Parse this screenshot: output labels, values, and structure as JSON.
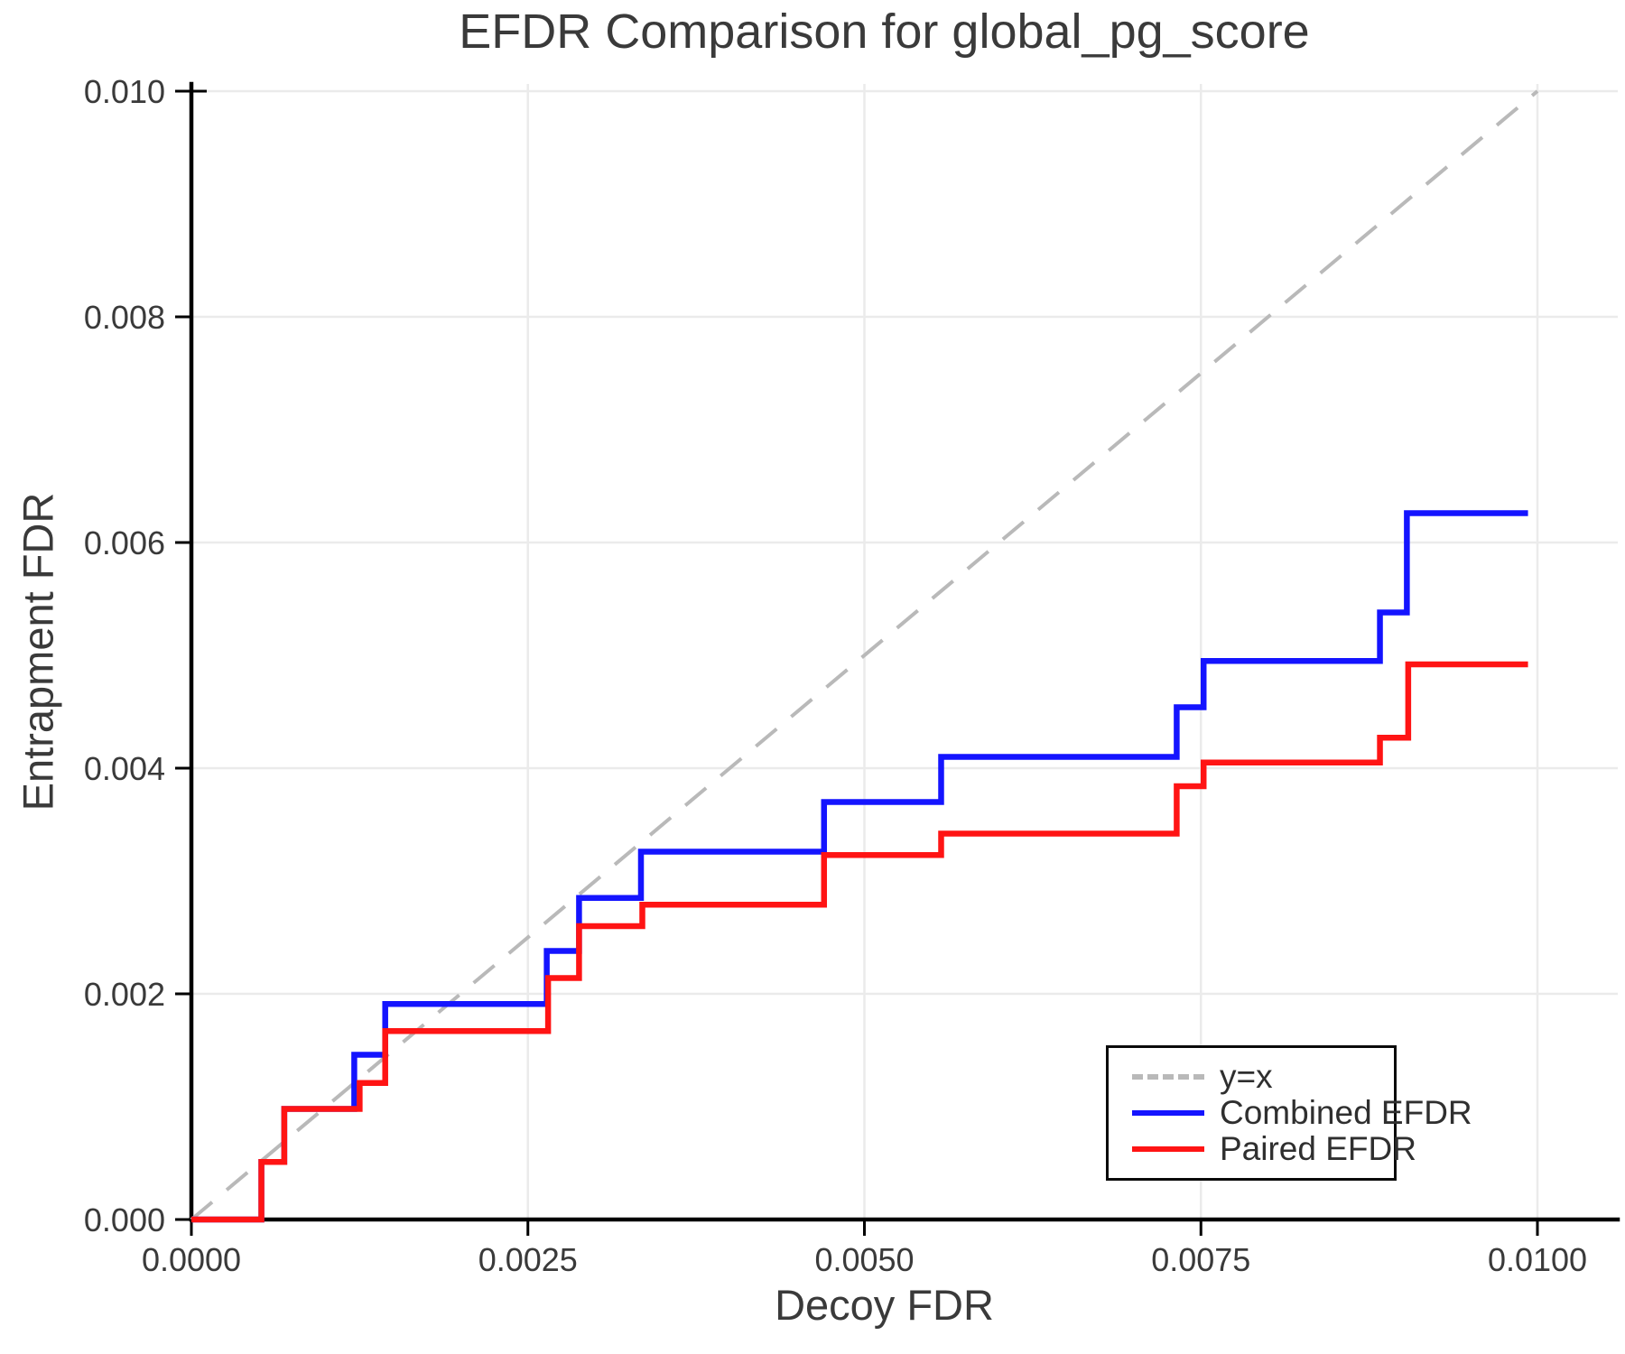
{
  "figure": {
    "title": "EFDR Comparison for global_pg_score",
    "xlabel": "Decoy FDR",
    "ylabel": "Entrapment FDR"
  },
  "legend": {
    "position": "lower right",
    "items": [
      {
        "label": "y=x",
        "color": "#b9b9b9",
        "line_style": "dashed"
      },
      {
        "label": "Combined EFDR",
        "color": "#1414ff",
        "line_style": "solid"
      },
      {
        "label": "Paired EFDR",
        "color": "#ff1414",
        "line_style": "solid"
      }
    ]
  },
  "chart_data": {
    "type": "line",
    "subtype": "step-post",
    "title": "EFDR Comparison for global_pg_score",
    "xlabel": "Decoy FDR",
    "ylabel": "Entrapment FDR",
    "xlim": [
      0,
      0.0106
    ],
    "ylim": [
      0,
      0.01006
    ],
    "grid": true,
    "x_ticks": [
      0,
      0.0025,
      0.005,
      0.0075,
      0.01
    ],
    "x_tick_labels": [
      "0.0000",
      "0.0025",
      "0.0050",
      "0.0075",
      "0.0100"
    ],
    "y_ticks": [
      0,
      0.002,
      0.004,
      0.006,
      0.008,
      0.01
    ],
    "y_tick_labels": [
      "0.000",
      "0.002",
      "0.004",
      "0.006",
      "0.008",
      "0.010"
    ],
    "reference_line": {
      "name": "y=x",
      "from": [
        0,
        0
      ],
      "to": [
        0.01,
        0.01
      ],
      "color": "#b9b9b9",
      "dashed": true
    },
    "series": [
      {
        "name": "Combined EFDR",
        "color": "#1414ff",
        "start": [
          0,
          0
        ],
        "x_end": 0.00993,
        "steps": [
          [
            0.00052,
            0.00051
          ],
          [
            0.00069,
            0.00098
          ],
          [
            0.00121,
            0.00146
          ],
          [
            0.00144,
            0.00191
          ],
          [
            0.00264,
            0.00238
          ],
          [
            0.00288,
            0.00285
          ],
          [
            0.00334,
            0.00326
          ],
          [
            0.0047,
            0.0037
          ],
          [
            0.00557,
            0.0041
          ],
          [
            0.00732,
            0.00454
          ],
          [
            0.00752,
            0.00495
          ],
          [
            0.00883,
            0.00538
          ],
          [
            0.00903,
            0.00626
          ]
        ]
      },
      {
        "name": "Paired EFDR",
        "color": "#ff1414",
        "start": [
          0,
          0
        ],
        "x_end": 0.00993,
        "steps": [
          [
            0.00052,
            0.00051
          ],
          [
            0.00069,
            0.00098
          ],
          [
            0.00125,
            0.00121
          ],
          [
            0.00144,
            0.00167
          ],
          [
            0.00265,
            0.00214
          ],
          [
            0.00288,
            0.0026
          ],
          [
            0.00335,
            0.00279
          ],
          [
            0.0047,
            0.00323
          ],
          [
            0.00557,
            0.00342
          ],
          [
            0.00732,
            0.00384
          ],
          [
            0.00752,
            0.00405
          ],
          [
            0.00883,
            0.00427
          ],
          [
            0.00904,
            0.00492
          ]
        ]
      }
    ]
  }
}
